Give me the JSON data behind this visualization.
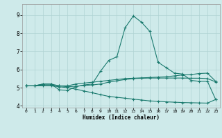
{
  "xlabel": "Humidex (Indice chaleur)",
  "xlim": [
    -0.5,
    23.5
  ],
  "ylim": [
    3.9,
    9.6
  ],
  "yticks": [
    4,
    5,
    6,
    7,
    8,
    9
  ],
  "xticks": [
    0,
    1,
    2,
    3,
    4,
    5,
    6,
    7,
    8,
    9,
    10,
    11,
    12,
    13,
    14,
    15,
    16,
    17,
    18,
    19,
    20,
    21,
    22,
    23
  ],
  "bg_color": "#ceeaea",
  "grid_color": "#b0d4d4",
  "line_color": "#1a7a6e",
  "line1_x": [
    0,
    1,
    2,
    3,
    4,
    5,
    6,
    7,
    8,
    9,
    10,
    11,
    12,
    13,
    14,
    15,
    16,
    17,
    18,
    19,
    20,
    21,
    22,
    23
  ],
  "line1_y": [
    5.1,
    5.1,
    5.2,
    5.2,
    5.1,
    5.1,
    5.2,
    5.25,
    5.3,
    5.35,
    5.4,
    5.45,
    5.5,
    5.52,
    5.54,
    5.56,
    5.58,
    5.6,
    5.65,
    5.7,
    5.72,
    5.78,
    5.8,
    5.35
  ],
  "line2_x": [
    0,
    1,
    2,
    3,
    4,
    5,
    6,
    7,
    8,
    9,
    10,
    11,
    12,
    13,
    14,
    15,
    16,
    17,
    18,
    19,
    20,
    21,
    22,
    23
  ],
  "line2_y": [
    5.1,
    5.1,
    5.2,
    5.2,
    4.88,
    4.85,
    5.05,
    5.15,
    5.2,
    5.9,
    6.5,
    6.7,
    8.3,
    8.95,
    8.6,
    8.1,
    6.4,
    6.1,
    5.8,
    5.75,
    5.4,
    5.35,
    5.35,
    4.35
  ],
  "line3_x": [
    0,
    1,
    2,
    3,
    4,
    5,
    6,
    7,
    8,
    9,
    10,
    11,
    12,
    13,
    14,
    15,
    16,
    17,
    18,
    19,
    20,
    21,
    22,
    23
  ],
  "line3_y": [
    5.1,
    5.1,
    5.15,
    5.15,
    5.1,
    5.05,
    5.08,
    5.12,
    5.15,
    5.2,
    5.3,
    5.38,
    5.45,
    5.5,
    5.52,
    5.53,
    5.53,
    5.53,
    5.53,
    5.53,
    5.52,
    5.52,
    5.5,
    5.32
  ],
  "line4_x": [
    0,
    1,
    2,
    3,
    4,
    5,
    6,
    7,
    8,
    9,
    10,
    11,
    12,
    13,
    14,
    15,
    16,
    17,
    18,
    19,
    20,
    21,
    22,
    23
  ],
  "line4_y": [
    5.1,
    5.1,
    5.1,
    5.1,
    5.05,
    5.0,
    4.92,
    4.82,
    4.72,
    4.62,
    4.52,
    4.47,
    4.42,
    4.37,
    4.32,
    4.27,
    4.25,
    4.22,
    4.2,
    4.18,
    4.17,
    4.16,
    4.15,
    4.35
  ]
}
